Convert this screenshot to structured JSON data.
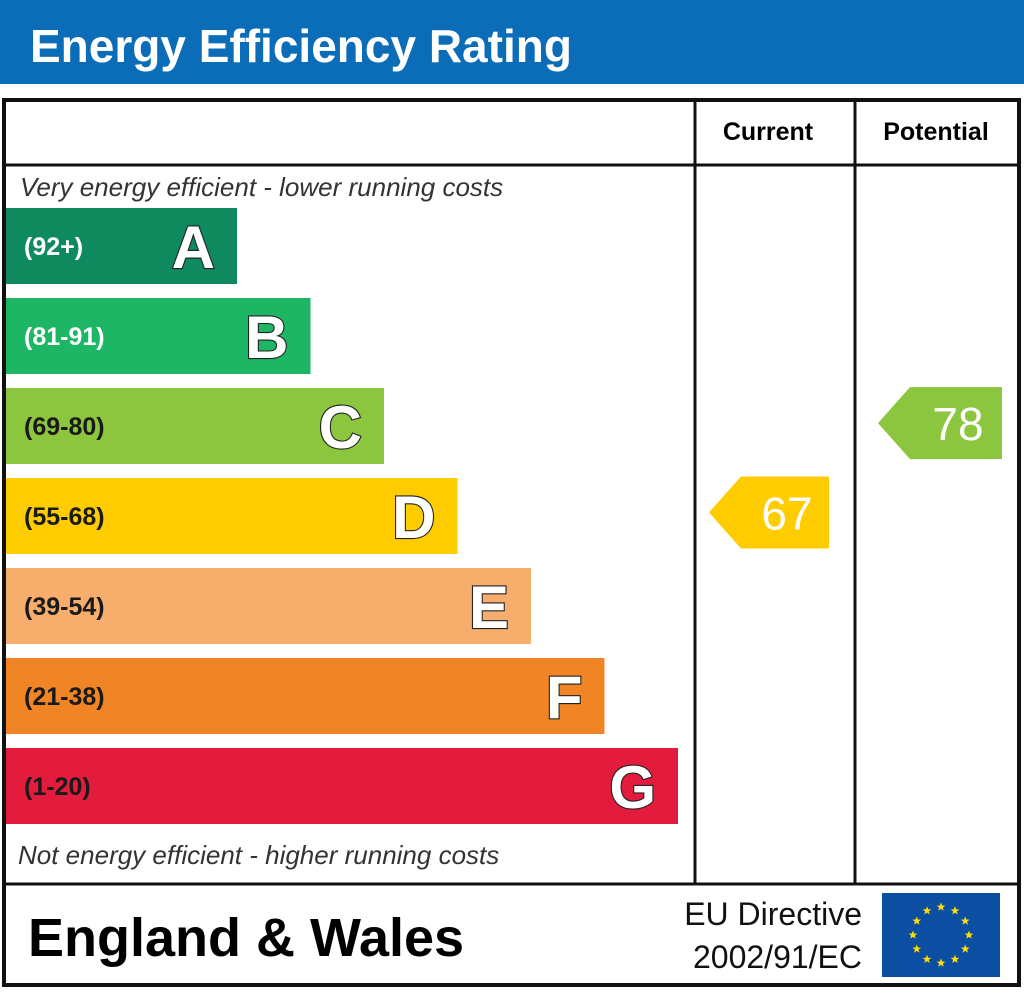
{
  "chart_data": {
    "type": "bar",
    "title": "Energy Efficiency Rating",
    "columns": {
      "current": "Current",
      "potential": "Potential"
    },
    "top_note": "Very energy efficient - lower running costs",
    "bottom_note": "Not energy efficient - higher running costs",
    "categories": [
      "A",
      "B",
      "C",
      "D",
      "E",
      "F",
      "G"
    ],
    "bands": [
      {
        "letter": "A",
        "range": "(92+)",
        "min": 92,
        "max": 100,
        "color": "#0f8a5f",
        "range_color": "#ffffff"
      },
      {
        "letter": "B",
        "range": "(81-91)",
        "min": 81,
        "max": 91,
        "color": "#1db665",
        "range_color": "#ffffff"
      },
      {
        "letter": "C",
        "range": "(69-80)",
        "min": 69,
        "max": 80,
        "color": "#8cc63f",
        "range_color": "#1a1a1a"
      },
      {
        "letter": "D",
        "range": "(55-68)",
        "min": 55,
        "max": 68,
        "color": "#ffcc00",
        "range_color": "#1a1a1a"
      },
      {
        "letter": "E",
        "range": "(39-54)",
        "min": 39,
        "max": 54,
        "color": "#f7ae6c",
        "range_color": "#1a1a1a"
      },
      {
        "letter": "F",
        "range": "(21-38)",
        "min": 21,
        "max": 38,
        "color": "#f18425",
        "range_color": "#1a1a1a"
      },
      {
        "letter": "G",
        "range": "(1-20)",
        "min": 1,
        "max": 20,
        "color": "#e31b3d",
        "range_color": "#1a1a1a"
      }
    ],
    "current": {
      "value": 67,
      "label": "67",
      "band": "D",
      "color": "#ffcc00"
    },
    "potential": {
      "value": 78,
      "label": "78",
      "band": "C",
      "color": "#8cc63f"
    }
  },
  "footer": {
    "country": "England & Wales",
    "directive_line1": "EU Directive",
    "directive_line2": "2002/91/EC"
  },
  "colors": {
    "header_blue": "#0b6db7",
    "eu_flag_blue": "#0b4ea2",
    "eu_star_yellow": "#ffdd00",
    "border": "#111111"
  }
}
